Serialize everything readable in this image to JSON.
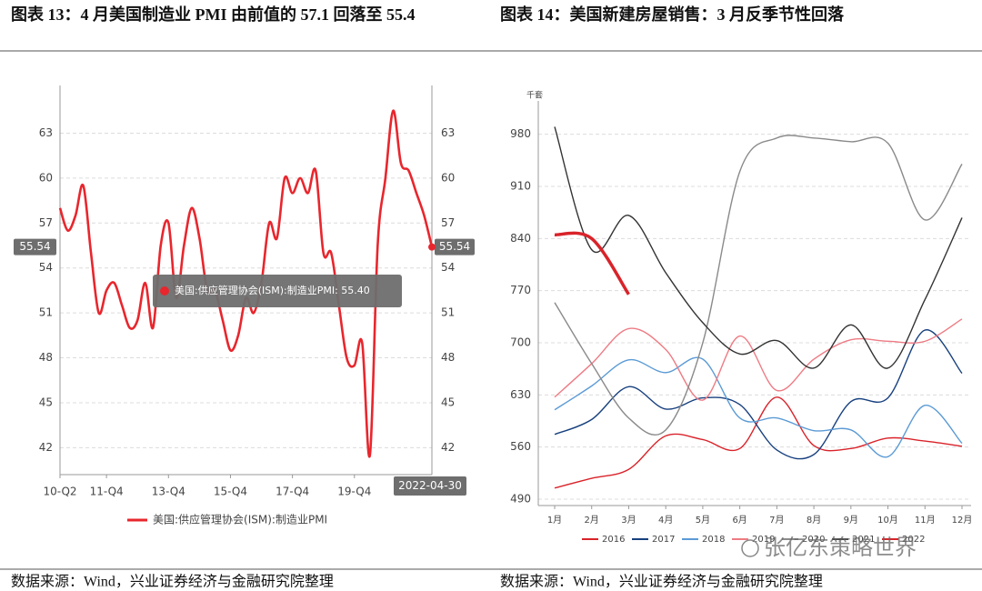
{
  "watermark": "张亿东策略世界",
  "chart_data": [
    {
      "type": "line",
      "title": "图表 13：4 月美国制造业 PMI 由前值的 57.1 回落至 55.4",
      "source": "数据来源：Wind，兴业证券经济与金融研究院整理",
      "categories": [
        "10-Q2",
        null,
        null,
        null,
        null,
        null,
        "11-Q4",
        null,
        null,
        null,
        null,
        null,
        null,
        null,
        "13-Q4",
        null,
        null,
        null,
        null,
        null,
        null,
        null,
        "15-Q4",
        null,
        null,
        null,
        null,
        null,
        null,
        null,
        "17-Q4",
        null,
        null,
        null,
        null,
        null,
        null,
        null,
        "19-Q4",
        null,
        null,
        null,
        null,
        null,
        null,
        null,
        null,
        null,
        null
      ],
      "series": [
        {
          "name": "美国:供应管理协会(ISM):制造业PMI",
          "color": "#e8262d",
          "values": [
            58,
            56.5,
            57.5,
            59.5,
            55,
            51,
            52.5,
            53,
            51.5,
            50,
            50.5,
            53,
            50,
            55.5,
            57,
            52,
            55.5,
            58,
            56,
            52.5,
            52.5,
            50.5,
            48.5,
            49.5,
            52,
            51,
            53,
            57,
            56,
            60,
            59,
            60,
            59,
            60.5,
            55,
            55,
            51.5,
            48,
            47.5,
            49,
            41.5,
            55.5,
            60,
            64.5,
            61,
            60.5,
            59,
            57.5,
            55.4
          ]
        }
      ],
      "annotations": [
        "55.54",
        "2022-04-30",
        "美国:供应管理协会(ISM):制造业PMI: 55.40"
      ],
      "ylim": [
        40.2,
        65.7
      ],
      "yticks": [
        42,
        45,
        48,
        51,
        54,
        57,
        60,
        63
      ],
      "grid": true,
      "legend": "bottom"
    },
    {
      "type": "line",
      "title": "图表 14：美国新建房屋销售：3 月反季节性回落",
      "source": "数据来源：Wind，兴业证券经济与金融研究院整理",
      "y_label": "千套",
      "categories": [
        "1月",
        "2月",
        "3月",
        "4月",
        "5月",
        "6月",
        "7月",
        "8月",
        "9月",
        "10月",
        "11月",
        "12月"
      ],
      "series": [
        {
          "name": "2016",
          "color": "#d9232a",
          "values": [
            505,
            518,
            530,
            575,
            570,
            558,
            627,
            562,
            558,
            572,
            568,
            561
          ]
        },
        {
          "name": "2017",
          "color": "#17407e",
          "values": [
            577,
            597,
            641,
            611,
            626,
            617,
            556,
            550,
            621,
            626,
            717,
            659
          ]
        },
        {
          "name": "2018",
          "color": "#5b9bd5",
          "values": [
            610,
            642,
            677,
            660,
            678,
            599,
            599,
            582,
            583,
            547,
            616,
            565
          ]
        },
        {
          "name": "2019",
          "color": "#ee7b84",
          "values": [
            627,
            672,
            719,
            691,
            623,
            709,
            636,
            678,
            704,
            702,
            702,
            732
          ]
        },
        {
          "name": "2020",
          "color": "#8a8a8a",
          "values": [
            754,
            672,
            599,
            583,
            700,
            930,
            975,
            975,
            970,
            968,
            865,
            940
          ]
        },
        {
          "name": "2021",
          "color": "#333333",
          "values": [
            990,
            825,
            871,
            794,
            727,
            685,
            703,
            666,
            724,
            666,
            758,
            868
          ]
        },
        {
          "name": "2022",
          "color": "#d9232a",
          "values": [
            845,
            840,
            765,
            null,
            null,
            null,
            null,
            null,
            null,
            null,
            null,
            null
          ]
        }
      ],
      "ylim": [
        490,
        1015
      ],
      "yticks": [
        490,
        560,
        630,
        700,
        770,
        840,
        910,
        980
      ],
      "grid": true,
      "legend": "bottom"
    }
  ]
}
